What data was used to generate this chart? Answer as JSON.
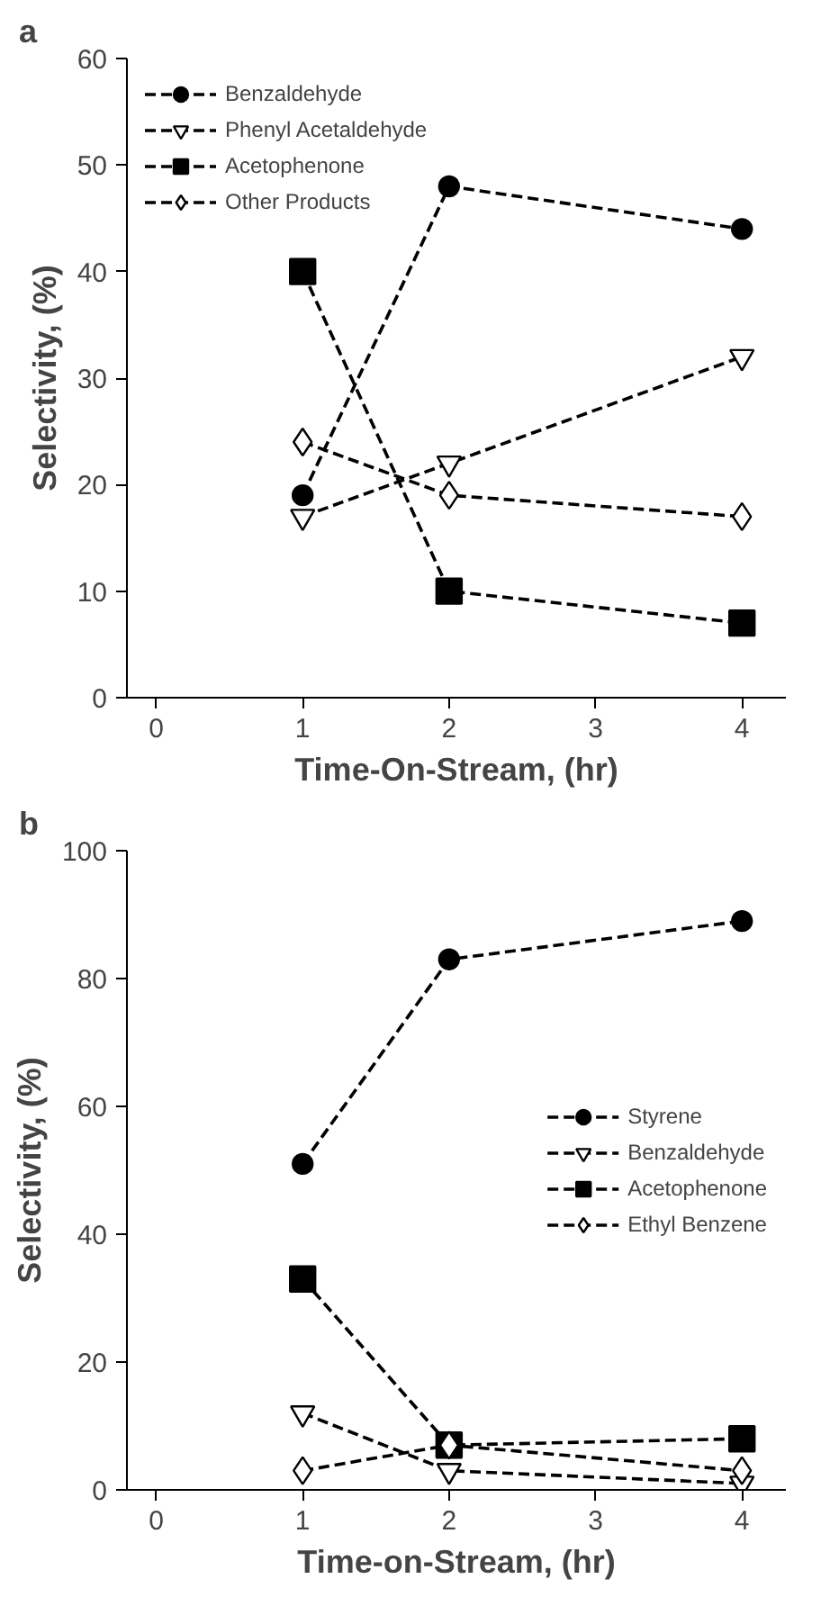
{
  "chart_data": [
    {
      "type": "line",
      "title": "a",
      "xlabel": "Time-On-Stream, (hr)",
      "ylabel": "Selectivity, (%)",
      "x": [
        1,
        2,
        4
      ],
      "xlim": [
        -0.2,
        4.3
      ],
      "xticks": [
        0,
        1,
        2,
        3,
        4
      ],
      "ylim": [
        0,
        60
      ],
      "yticks": [
        0,
        10,
        20,
        30,
        40,
        50,
        60
      ],
      "grid": false,
      "legend": "top left",
      "line_style": "dashed",
      "series": [
        {
          "name": "Benzaldehyde",
          "color": "#000000",
          "marker": "circle",
          "values": [
            19,
            48,
            44
          ]
        },
        {
          "name": "Phenyl Acetaldehyde",
          "color": "#000000",
          "marker": "triangle",
          "values": [
            17,
            22,
            32
          ]
        },
        {
          "name": "Acetophenone",
          "color": "#000000",
          "marker": "square",
          "values": [
            40,
            10,
            7
          ]
        },
        {
          "name": "Other Products",
          "color": "#000000",
          "marker": "diamond",
          "values": [
            24,
            19,
            17
          ]
        }
      ]
    },
    {
      "type": "line",
      "title": "b",
      "xlabel": "Time-on-Stream, (hr)",
      "ylabel": "Selectivity, (%)",
      "x": [
        1,
        2,
        4
      ],
      "xlim": [
        -0.2,
        4.3
      ],
      "xticks": [
        0,
        1,
        2,
        3,
        4
      ],
      "ylim": [
        0,
        100
      ],
      "yticks": [
        0,
        20,
        40,
        60,
        80,
        100
      ],
      "grid": false,
      "legend": "right",
      "line_style": "dashed",
      "series": [
        {
          "name": "Styrene",
          "color": "#000000",
          "marker": "circle",
          "values": [
            51,
            83,
            89
          ]
        },
        {
          "name": "Benzaldehyde",
          "color": "#000000",
          "marker": "triangle",
          "values": [
            12,
            3,
            1
          ]
        },
        {
          "name": "Acetophenone",
          "color": "#000000",
          "marker": "square",
          "values": [
            33,
            7,
            8
          ]
        },
        {
          "name": "Ethyl Benzene",
          "color": "#000000",
          "marker": "diamond",
          "values": [
            3,
            7,
            3
          ]
        }
      ]
    }
  ]
}
